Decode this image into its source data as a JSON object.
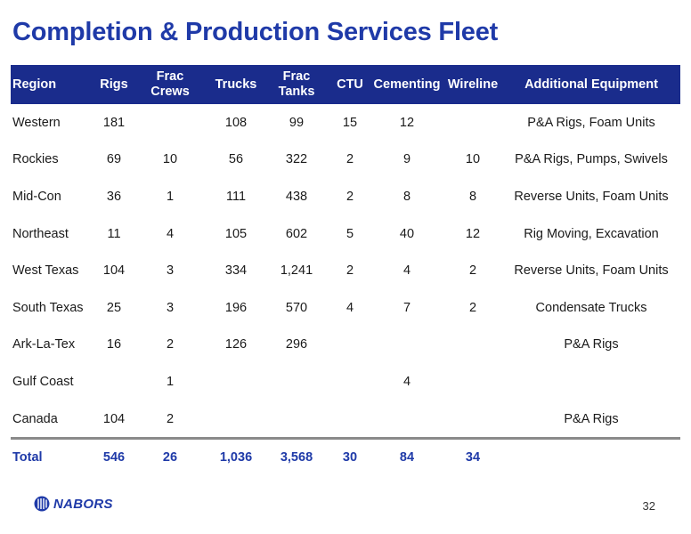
{
  "title": "Completion & Production Services Fleet",
  "table": {
    "headers": {
      "region": "Region",
      "rigs": "Rigs",
      "frac_crews_1": "Frac",
      "frac_crews_2": "Crews",
      "trucks": "Trucks",
      "frac_tanks_1": "Frac",
      "frac_tanks_2": "Tanks",
      "ctu": "CTU",
      "cementing": "Cementing",
      "wireline": "Wireline",
      "additional": "Additional Equipment"
    },
    "rows": [
      {
        "region": "Western",
        "rigs": "181",
        "frac_crews": "",
        "trucks": "108",
        "frac_tanks": "99",
        "ctu": "15",
        "cementing": "12",
        "wireline": "",
        "additional": "P&A Rigs, Foam Units"
      },
      {
        "region": "Rockies",
        "rigs": "69",
        "frac_crews": "10",
        "trucks": "56",
        "frac_tanks": "322",
        "ctu": "2",
        "cementing": "9",
        "wireline": "10",
        "additional": "P&A Rigs, Pumps, Swivels"
      },
      {
        "region": "Mid-Con",
        "rigs": "36",
        "frac_crews": "1",
        "trucks": "111",
        "frac_tanks": "438",
        "ctu": "2",
        "cementing": "8",
        "wireline": "8",
        "additional": "Reverse Units, Foam Units"
      },
      {
        "region": "Northeast",
        "rigs": "11",
        "frac_crews": "4",
        "trucks": "105",
        "frac_tanks": "602",
        "ctu": "5",
        "cementing": "40",
        "wireline": "12",
        "additional": "Rig Moving, Excavation"
      },
      {
        "region": "West Texas",
        "rigs": "104",
        "frac_crews": "3",
        "trucks": "334",
        "frac_tanks": "1,241",
        "ctu": "2",
        "cementing": "4",
        "wireline": "2",
        "additional": "Reverse Units, Foam Units"
      },
      {
        "region": "South Texas",
        "rigs": "25",
        "frac_crews": "3",
        "trucks": "196",
        "frac_tanks": "570",
        "ctu": "4",
        "cementing": "7",
        "wireline": "2",
        "additional": "Condensate Trucks"
      },
      {
        "region": "Ark-La-Tex",
        "rigs": "16",
        "frac_crews": "2",
        "trucks": "126",
        "frac_tanks": "296",
        "ctu": "",
        "cementing": "",
        "wireline": "",
        "additional": "P&A Rigs"
      },
      {
        "region": "Gulf Coast",
        "rigs": "",
        "frac_crews": "1",
        "trucks": "",
        "frac_tanks": "",
        "ctu": "",
        "cementing": "4",
        "wireline": "",
        "additional": ""
      },
      {
        "region": "Canada",
        "rigs": "104",
        "frac_crews": "2",
        "trucks": "",
        "frac_tanks": "",
        "ctu": "",
        "cementing": "",
        "wireline": "",
        "additional": "P&A Rigs"
      }
    ],
    "total": {
      "region": "Total",
      "rigs": "546",
      "frac_crews": "26",
      "trucks": "1,036",
      "frac_tanks": "3,568",
      "ctu": "30",
      "cementing": "84",
      "wireline": "34",
      "additional": ""
    }
  },
  "footer": {
    "logo_text": "NABORS",
    "page_number": "32"
  },
  "colors": {
    "title": "#1f3aa8",
    "header_bg": "#1a2c8c",
    "total_text": "#1f3aa8"
  }
}
